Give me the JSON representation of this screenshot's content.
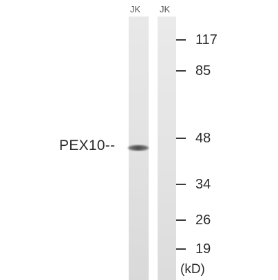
{
  "lanes": [
    {
      "label": "JK"
    },
    {
      "label": "JK"
    }
  ],
  "target": {
    "label": "PEX10--"
  },
  "markers": [
    {
      "value": "117"
    },
    {
      "value": "85"
    },
    {
      "value": "48"
    },
    {
      "value": "34"
    },
    {
      "value": "26"
    },
    {
      "value": "19"
    }
  ],
  "unit": "(kD)",
  "colors": {
    "lane_background": "#e3e3e3",
    "band": "#555555"
  }
}
